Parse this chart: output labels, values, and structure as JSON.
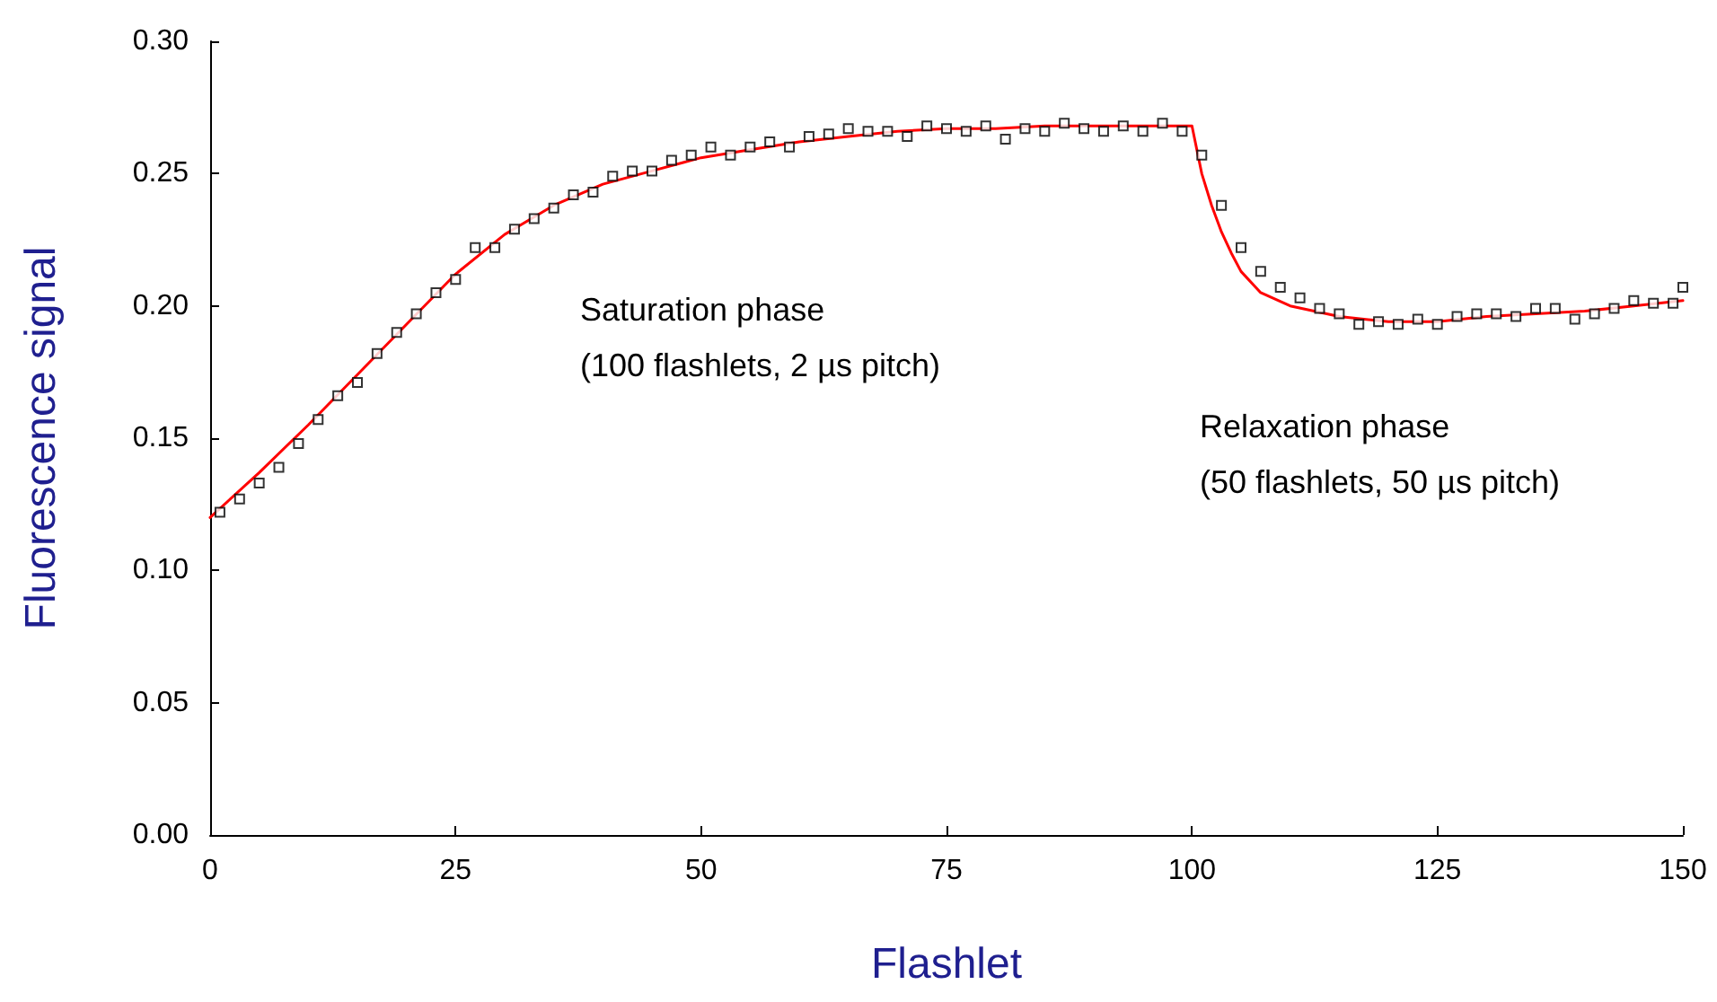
{
  "chart_data": {
    "type": "scatter",
    "xlabel": "Flashlet",
    "ylabel": "Fluorescence signal",
    "xlim": [
      0,
      150
    ],
    "xticks": [
      0,
      25,
      50,
      75,
      100,
      125,
      150
    ],
    "ylim": [
      0,
      0.3
    ],
    "yticks": [
      {
        "value": 0,
        "label": "0.00"
      },
      {
        "value": 0.05,
        "label": "0.05"
      },
      {
        "value": 0.1,
        "label": "0.10"
      },
      {
        "value": 0.15,
        "label": "0.15"
      },
      {
        "value": 0.2,
        "label": "0.20"
      },
      {
        "value": 0.25,
        "label": "0.25"
      },
      {
        "value": 0.3,
        "label": "0.30"
      }
    ],
    "grid": false,
    "annotations": [
      "Saturation phase\n(100 flashlets, 2 µs pitch)",
      "Relaxation phase\n(50 flashlets, 50 µs pitch)"
    ],
    "series": [
      {
        "marker": "square",
        "color": "#000000",
        "x": [
          1,
          3,
          5,
          7,
          9,
          11,
          13,
          15,
          17,
          19,
          21,
          23,
          25,
          27,
          29,
          31,
          33,
          35,
          37,
          39,
          41,
          43,
          45,
          47,
          49,
          51,
          53,
          55,
          57,
          59,
          61,
          63,
          65,
          67,
          69,
          71,
          73,
          75,
          77,
          79,
          81,
          83,
          85,
          87,
          89,
          91,
          93,
          95,
          97,
          99,
          101,
          103,
          105,
          107,
          109,
          111,
          113,
          115,
          117,
          119,
          121,
          123,
          125,
          127,
          129,
          131,
          133,
          135,
          137,
          139,
          141,
          143,
          145,
          147,
          149,
          150
        ],
        "values": [
          0.122,
          0.127,
          0.133,
          0.139,
          0.148,
          0.157,
          0.166,
          0.171,
          0.182,
          0.19,
          0.197,
          0.205,
          0.21,
          0.222,
          0.222,
          0.229,
          0.233,
          0.237,
          0.242,
          0.243,
          0.249,
          0.251,
          0.251,
          0.255,
          0.257,
          0.26,
          0.257,
          0.26,
          0.262,
          0.26,
          0.264,
          0.265,
          0.267,
          0.266,
          0.266,
          0.264,
          0.268,
          0.267,
          0.266,
          0.268,
          0.263,
          0.267,
          0.266,
          0.269,
          0.267,
          0.266,
          0.268,
          0.266,
          0.269,
          0.266,
          0.257,
          0.238,
          0.222,
          0.213,
          0.207,
          0.203,
          0.199,
          0.197,
          0.193,
          0.194,
          0.193,
          0.195,
          0.193,
          0.196,
          0.197,
          0.197,
          0.196,
          0.199,
          0.199,
          0.195,
          0.197,
          0.199,
          0.202,
          0.201,
          0.201,
          0.207
        ]
      },
      {
        "type": "line",
        "marker": "none",
        "line_style": "solid",
        "color": "#ff0000",
        "x": [
          0,
          5,
          10,
          15,
          20,
          25,
          30,
          35,
          40,
          45,
          50,
          55,
          60,
          65,
          70,
          75,
          80,
          85,
          90,
          95,
          100,
          101,
          102,
          103,
          104,
          105,
          107,
          110,
          115,
          120,
          125,
          130,
          135,
          140,
          145,
          150
        ],
        "values": [
          0.12,
          0.137,
          0.155,
          0.174,
          0.193,
          0.212,
          0.227,
          0.238,
          0.246,
          0.251,
          0.256,
          0.259,
          0.262,
          0.264,
          0.266,
          0.267,
          0.267,
          0.268,
          0.268,
          0.268,
          0.268,
          0.25,
          0.238,
          0.228,
          0.22,
          0.213,
          0.205,
          0.2,
          0.196,
          0.194,
          0.194,
          0.196,
          0.197,
          0.198,
          0.2,
          0.202
        ]
      }
    ]
  }
}
